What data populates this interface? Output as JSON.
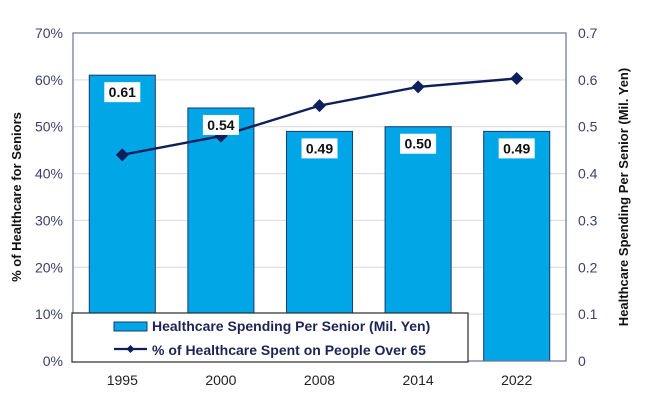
{
  "chart_data": {
    "type": "bar",
    "title": "",
    "categories": [
      "1995",
      "2000",
      "2008",
      "2014",
      "2022"
    ],
    "series": [
      {
        "name": "Healthcare Spending Per Senior (Mil. Yen)",
        "type": "bar",
        "axis": "right",
        "values": [
          0.61,
          0.54,
          0.49,
          0.5,
          0.49
        ],
        "data_labels": [
          "0.61",
          "0.54",
          "0.49",
          "0.50",
          "0.49"
        ]
      },
      {
        "name": "% of Healthcare Spent on People Over 65",
        "type": "line",
        "axis": "left",
        "values": [
          44,
          48,
          54.5,
          58.5,
          60.3
        ]
      }
    ],
    "left_axis": {
      "label": "% of Healthcare for Seniors",
      "ylim": [
        0,
        70
      ],
      "ticks": [
        "0%",
        "10%",
        "20%",
        "30%",
        "40%",
        "50%",
        "60%",
        "70%"
      ]
    },
    "right_axis": {
      "label": "Healthcare Spending Per Senior (Mil. Yen)",
      "ylim": [
        0,
        0.7
      ],
      "ticks": [
        "0",
        "0.1",
        "0.2",
        "0.3",
        "0.4",
        "0.5",
        "0.6",
        "0.7"
      ]
    },
    "xlabel": "",
    "grid": true,
    "legend_position": "bottom-left-inside",
    "colors": {
      "bar_fill": "#00a6e6",
      "bar_stroke": "#1d3a6e",
      "line": "#0f1f5c",
      "grid": "#d9d9d9",
      "frame": "#6b6f9c"
    }
  }
}
